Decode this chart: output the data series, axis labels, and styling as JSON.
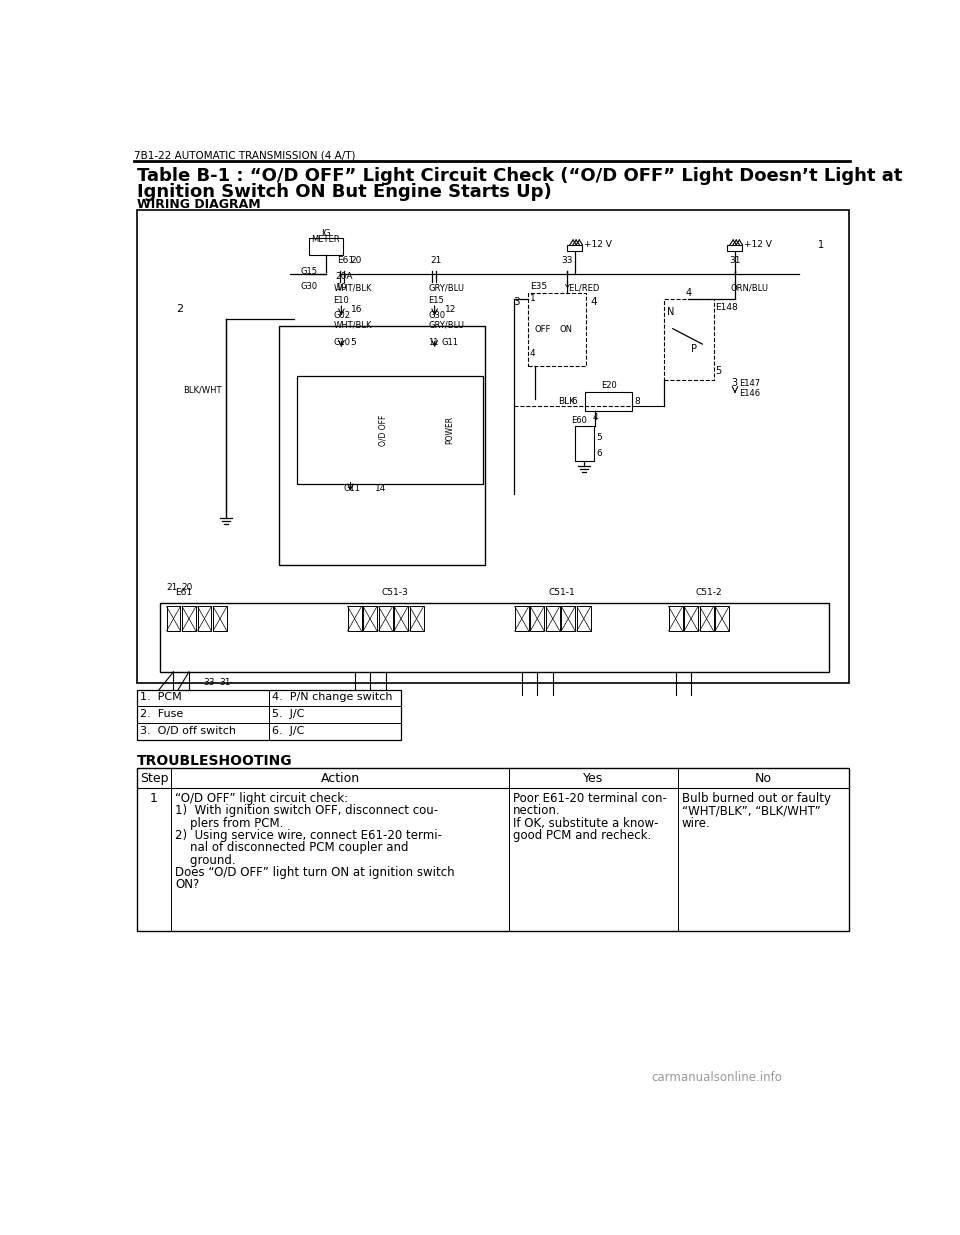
{
  "header_text": "7B1-22 AUTOMATIC TRANSMISSION (4 A/T)",
  "title_line1": "Table B-1 : “O/D OFF” Light Circuit Check (“O/D OFF” Light Doesn’t Light at",
  "title_line2": "Ignition Switch ON But Engine Starts Up)",
  "wiring_diagram_label": "WIRING DIAGRAM",
  "legend_items": [
    [
      "1.  PCM",
      "4.  P/N change switch"
    ],
    [
      "2.  Fuse",
      "5.  J/C"
    ],
    [
      "3.  O/D off switch",
      "6.  J/C"
    ]
  ],
  "troubleshooting_label": "TROUBLESHOOTING",
  "table_headers": [
    "Step",
    "Action",
    "Yes",
    "No"
  ],
  "table_row": {
    "step": "1",
    "action_lines": [
      "“O/D OFF” light circuit check:",
      "1)  With ignition switch OFF, disconnect cou-",
      "    plers from PCM.",
      "2)  Using service wire, connect E61-20 termi-",
      "    nal of disconnected PCM coupler and",
      "    ground.",
      "Does “O/D OFF” light turn ON at ignition switch",
      "ON?"
    ],
    "yes_lines": [
      "Poor E61-20 terminal con-",
      "nection.",
      "If OK, substitute a know-",
      "good PCM and recheck."
    ],
    "no_lines": [
      "Bulb burned out or faulty",
      "“WHT/BLK”, “BLK/WHT”",
      "wire."
    ]
  },
  "watermark": "carmanualsonline.info",
  "bg_color": "#ffffff"
}
